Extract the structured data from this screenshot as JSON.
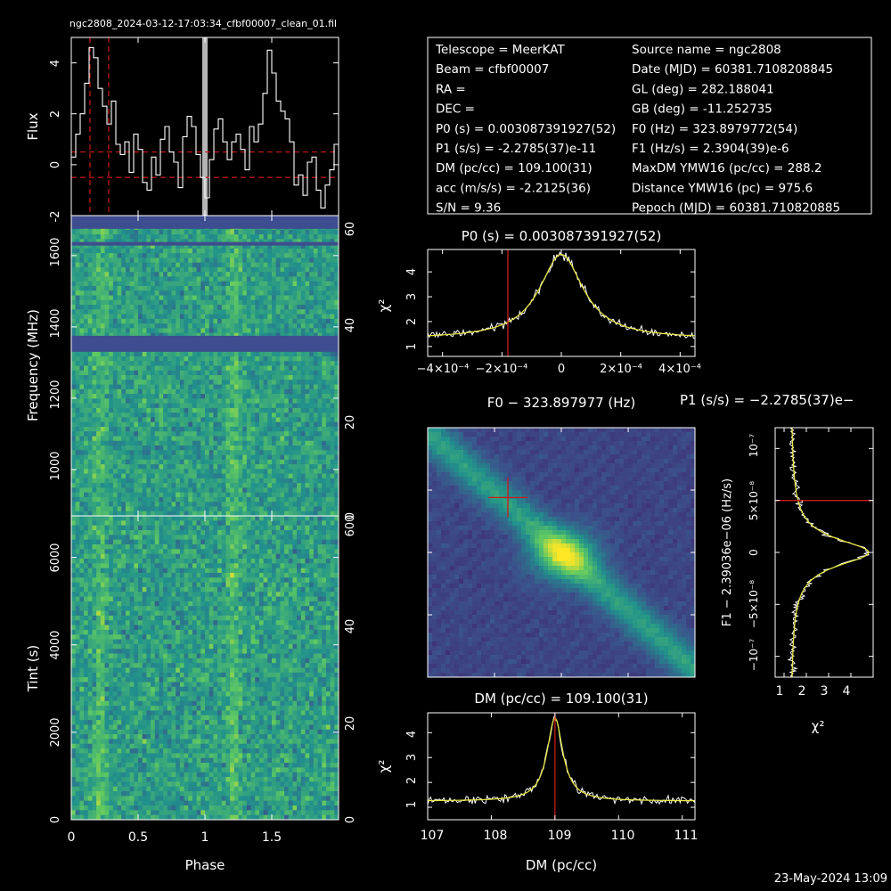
{
  "header_title": "ngc2808_2024-03-12-17:03:34_cfbf00007_clean_01.fil",
  "timestamp": "23-May-2024 13:09",
  "info": {
    "left": [
      "Telescope = MeerKAT",
      "Beam = cfbf00007",
      "RA =",
      "DEC =",
      "P0 (s) = 0.003087391927(52)",
      "P1 (s/s) = -2.2785(37)e-11",
      "DM (pc/cc) = 109.100(31)",
      "acc (m/s/s) = -2.2125(36)",
      "S/N = 9.36"
    ],
    "right": [
      "Source name = ngc2808",
      "Date (MJD) = 60381.7108208845",
      "GL (deg) = 282.188041",
      "GB (deg) = -11.252735",
      "F0 (Hz) = 323.8979772(54)",
      "F1 (Hz/s) = 2.3904(39)e-6",
      "MaxDM YMW16  (pc/cc) = 288.2",
      "Distance YMW16 (pc) = 975.6",
      "Pepoch (MJD) = 60381.710820885"
    ]
  },
  "colors": {
    "background": "#000000",
    "axis": "#ffffff",
    "curve": "#ffffff",
    "fit": "#e8e840",
    "marker": "#cc1a1a",
    "band": "#3e4d8f",
    "gray_bar": "#b4b4b4"
  },
  "chart_data": [
    {
      "type": "line",
      "name": "profile",
      "ylabel": "Flux",
      "xlim": [
        0,
        2
      ],
      "ylim": [
        -2,
        5
      ],
      "yticks": [
        "-2",
        "0",
        "2",
        "4"
      ],
      "series": [
        {
          "values": [
            0.3,
            1.2,
            2.0,
            3.2,
            4.6,
            4.2,
            3.0,
            2.3,
            1.6,
            2.5,
            0.8,
            0.4,
            0.9,
            -0.3,
            1.2,
            0.6,
            -0.7,
            -1.0,
            0.3,
            -0.4,
            1.0,
            1.5,
            0.5,
            0.1,
            -0.9,
            1.1,
            1.9,
            1.5,
            0.4,
            -0.5,
            -1.3,
            0.2,
            1.4,
            1.8,
            0.9,
            0.2,
            0.9,
            1.2,
            0.6,
            -0.2,
            1.5,
            0.9,
            1.6,
            2.8,
            4.5,
            3.6,
            2.5,
            2.1,
            1.8,
            0.9,
            -0.8,
            -0.4,
            -1.2,
            0.1,
            0.3,
            -1.0,
            -1.7,
            -0.8,
            -0.2,
            0.8
          ]
        }
      ],
      "red_dashed_x": [
        0.14,
        0.28
      ],
      "red_dashed_y": [
        0.5,
        -0.5
      ],
      "gray_bar_x": 1.0
    },
    {
      "type": "heatmap",
      "name": "frequency-phase",
      "ylabel": "Frequency (MHz)",
      "ylim": [
        870,
        1712
      ],
      "yticks": [
        "1000",
        "1200",
        "1400",
        "1600"
      ],
      "right_ticks": [
        "0",
        "20",
        "40",
        "60"
      ],
      "masked_bands_mhz": [
        [
          1330,
          1375
        ],
        [
          1628,
          1638
        ],
        [
          1675,
          1712
        ]
      ]
    },
    {
      "type": "heatmap",
      "name": "time-phase",
      "xlabel": "Phase",
      "ylabel": "Tint (s)",
      "xlim": [
        0,
        2
      ],
      "ylim": [
        0,
        6950
      ],
      "xticks": [
        "0",
        "0.5",
        "1",
        "1.5"
      ],
      "yticks": [
        "0",
        "2000",
        "4000",
        "6000"
      ],
      "right_ticks": [
        "0",
        "20",
        "40",
        "60"
      ],
      "right_top_label": "600"
    },
    {
      "type": "line",
      "name": "p0-chi2",
      "title": "P0 (s) = 0.003087391927(52)",
      "ylabel": "χ²",
      "xlim": [
        -0.00045,
        0.00045
      ],
      "ylim": [
        0.6,
        4.9
      ],
      "xticks": [
        "−4×10⁻⁴",
        "−2×10⁻⁴",
        "0",
        "2×10⁻⁴",
        "4×10⁻⁴"
      ],
      "yticks": [
        "1",
        "2",
        "3",
        "4"
      ],
      "marker_x": -0.00018,
      "center": 0,
      "peak": 4.7,
      "base": 1.3,
      "width": 9e-05
    },
    {
      "type": "heatmap",
      "name": "f0-dm-plane",
      "title": "F0 − 323.897977 (Hz)",
      "xlabel": "DM (pc/cc)",
      "marker": [
        0.3,
        0.28
      ]
    },
    {
      "type": "line",
      "name": "p1-chi2",
      "title": "P1 (s/s) = −2.2785(37)e−",
      "xlabel": "χ²",
      "ylabel": "F1 − 2.39036e−06 (Hz/s)",
      "xlim": [
        0.6,
        5.0
      ],
      "ylim": [
        -1.2e-07,
        1.2e-07
      ],
      "xticks": [
        "1",
        "2",
        "3",
        "4"
      ],
      "yticks": [
        "−10⁻⁷",
        "−5×10⁻⁸",
        "0",
        "5×10⁻⁸",
        "10⁻⁷"
      ],
      "marker_y": 5e-08,
      "center": 0,
      "peak": 4.8,
      "base": 1.3,
      "width": 1.6e-08
    },
    {
      "type": "line",
      "name": "dm-chi2",
      "title": "DM (pc/cc) = 109.100(31)",
      "xlabel": "DM (pc/cc)",
      "ylabel": "χ²",
      "xlim": [
        107,
        111.2
      ],
      "ylim": [
        0.5,
        4.8
      ],
      "xticks": [
        "107",
        "108",
        "109",
        "110",
        "111"
      ],
      "yticks": [
        "1",
        "2",
        "3",
        "4"
      ],
      "marker_x": 109.0,
      "center": 109.0,
      "peak": 4.6,
      "base": 1.25,
      "width": 0.15
    }
  ]
}
